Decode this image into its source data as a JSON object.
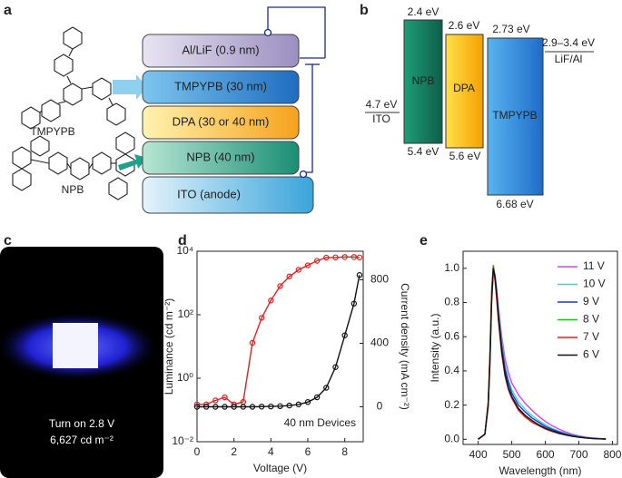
{
  "panel_labels": [
    "a",
    "b",
    "c",
    "d",
    "e"
  ],
  "device": {
    "layers": [
      "Al/LiF (0.9 nm)",
      "TMPYPB (30 nm)",
      "DPA (30 or 40 nm)",
      "NPB (40 nm)",
      "ITO (anode)"
    ],
    "molecules": [
      "TMPYPB",
      "NPB"
    ]
  },
  "energy_diagram": {
    "materials": [
      {
        "name": "NPB",
        "top": "2.4 eV",
        "bottom": "5.4 eV"
      },
      {
        "name": "DPA",
        "top": "2.6 eV",
        "bottom": "5.6 eV"
      },
      {
        "name": "TMPYPB",
        "top": "2.73 eV",
        "bottom": "6.68 eV"
      }
    ],
    "electrodes": [
      {
        "name": "ITO",
        "level": "4.7 eV"
      },
      {
        "name": "LiF/Al",
        "level": "2.9–3.4 eV"
      }
    ]
  },
  "photo": {
    "lines": [
      "Turn on 2.8 V",
      "6,627 cd m⁻²"
    ]
  },
  "chart_data": [
    {
      "type": "line",
      "xlabel": "Voltage (V)",
      "ylabel": "Luminance (cd m⁻²)",
      "y2label": "Current density (mA cm⁻²)",
      "annotation": "40 nm Devices",
      "ylog": true,
      "markers": true,
      "xlim": [
        0,
        9
      ],
      "xticks": [
        0,
        2,
        4,
        6,
        8
      ],
      "ylim": [
        0.01,
        10000
      ],
      "yticks": [
        {
          "value": 0.01,
          "label": "10⁻²"
        },
        {
          "value": 1,
          "label": "10⁰"
        },
        {
          "value": 100,
          "label": "10²"
        },
        {
          "value": 10000,
          "label": "10⁴"
        }
      ],
      "y2lim": [
        -220,
        980
      ],
      "y2ticks": [
        0,
        400,
        800
      ],
      "x": [
        0,
        0.5,
        1,
        1.5,
        2,
        2.5,
        3,
        3.5,
        4,
        4.5,
        5,
        5.5,
        6,
        6.5,
        7,
        7.5,
        8,
        8.5,
        8.8
      ],
      "series": [
        {
          "color": "#e02020",
          "values": [
            0.15,
            0.15,
            0.2,
            0.25,
            0.15,
            0.18,
            13,
            80,
            280,
            800,
            1600,
            2600,
            3600,
            5000,
            6300,
            6400,
            6600,
            6600,
            6400
          ]
        },
        {
          "color": "#111111",
          "axis": "y2",
          "values": [
            0,
            0,
            0,
            0,
            0,
            0,
            0,
            1,
            2,
            4,
            8,
            15,
            30,
            60,
            120,
            250,
            450,
            650,
            830
          ]
        }
      ]
    },
    {
      "type": "line",
      "xlabel": "Wavelength (nm)",
      "ylabel": "Intensity (a.u.)",
      "legend": "upper right",
      "xlim": [
        355,
        815
      ],
      "xticks": [
        400,
        500,
        600,
        700,
        800
      ],
      "ylim": [
        -0.03,
        1.1
      ],
      "yticks": [
        {
          "value": 0,
          "label": "0.0"
        },
        0.2,
        0.4,
        0.6,
        0.8,
        {
          "value": 1,
          "label": "1.0"
        }
      ],
      "x": [
        400,
        420,
        430,
        435,
        440,
        445,
        450,
        455,
        460,
        470,
        480,
        490,
        500,
        520,
        540,
        560,
        580,
        600,
        620,
        640,
        660,
        680,
        700,
        720,
        740,
        760,
        780
      ],
      "series": [
        {
          "name": "11 V",
          "color": "#e040e0",
          "values": [
            0,
            0.03,
            0.19,
            0.46,
            0.8,
            0.98,
            0.96,
            0.88,
            0.78,
            0.6,
            0.47,
            0.39,
            0.33,
            0.26,
            0.21,
            0.17,
            0.135,
            0.105,
            0.08,
            0.06,
            0.043,
            0.03,
            0.02,
            0.013,
            0.008,
            0.005,
            0.003
          ]
        },
        {
          "name": "10 V",
          "color": "#30d8d8",
          "values": [
            0,
            0.03,
            0.2,
            0.48,
            0.83,
            0.99,
            0.96,
            0.87,
            0.76,
            0.57,
            0.43,
            0.35,
            0.29,
            0.22,
            0.175,
            0.14,
            0.11,
            0.085,
            0.065,
            0.048,
            0.035,
            0.025,
            0.017,
            0.011,
            0.007,
            0.004,
            0.002
          ]
        },
        {
          "name": "9 V",
          "color": "#2030d0",
          "values": [
            0,
            0.03,
            0.21,
            0.5,
            0.85,
            1.0,
            0.96,
            0.86,
            0.74,
            0.55,
            0.41,
            0.33,
            0.27,
            0.2,
            0.16,
            0.125,
            0.1,
            0.075,
            0.058,
            0.043,
            0.031,
            0.022,
            0.015,
            0.01,
            0.006,
            0.004,
            0.002
          ]
        },
        {
          "name": "8 V",
          "color": "#20c020",
          "values": [
            0,
            0.03,
            0.22,
            0.52,
            0.88,
            1.02,
            0.95,
            0.83,
            0.71,
            0.52,
            0.38,
            0.3,
            0.25,
            0.18,
            0.14,
            0.11,
            0.085,
            0.065,
            0.05,
            0.037,
            0.027,
            0.019,
            0.013,
            0.008,
            0.005,
            0.003,
            0.002
          ]
        },
        {
          "name": "7 V",
          "color": "#e02020",
          "values": [
            0,
            0.03,
            0.22,
            0.5,
            0.85,
            1.01,
            0.93,
            0.82,
            0.7,
            0.5,
            0.37,
            0.29,
            0.24,
            0.17,
            0.13,
            0.1,
            0.08,
            0.06,
            0.046,
            0.034,
            0.025,
            0.018,
            0.012,
            0.008,
            0.005,
            0.003,
            0.002
          ]
        },
        {
          "name": "6 V",
          "color": "#111111",
          "values": [
            0,
            0.03,
            0.2,
            0.45,
            0.8,
            1.0,
            0.95,
            0.85,
            0.72,
            0.52,
            0.38,
            0.3,
            0.25,
            0.18,
            0.14,
            0.11,
            0.085,
            0.065,
            0.05,
            0.037,
            0.027,
            0.019,
            0.013,
            0.008,
            0.005,
            0.003,
            0.002
          ]
        }
      ]
    }
  ]
}
